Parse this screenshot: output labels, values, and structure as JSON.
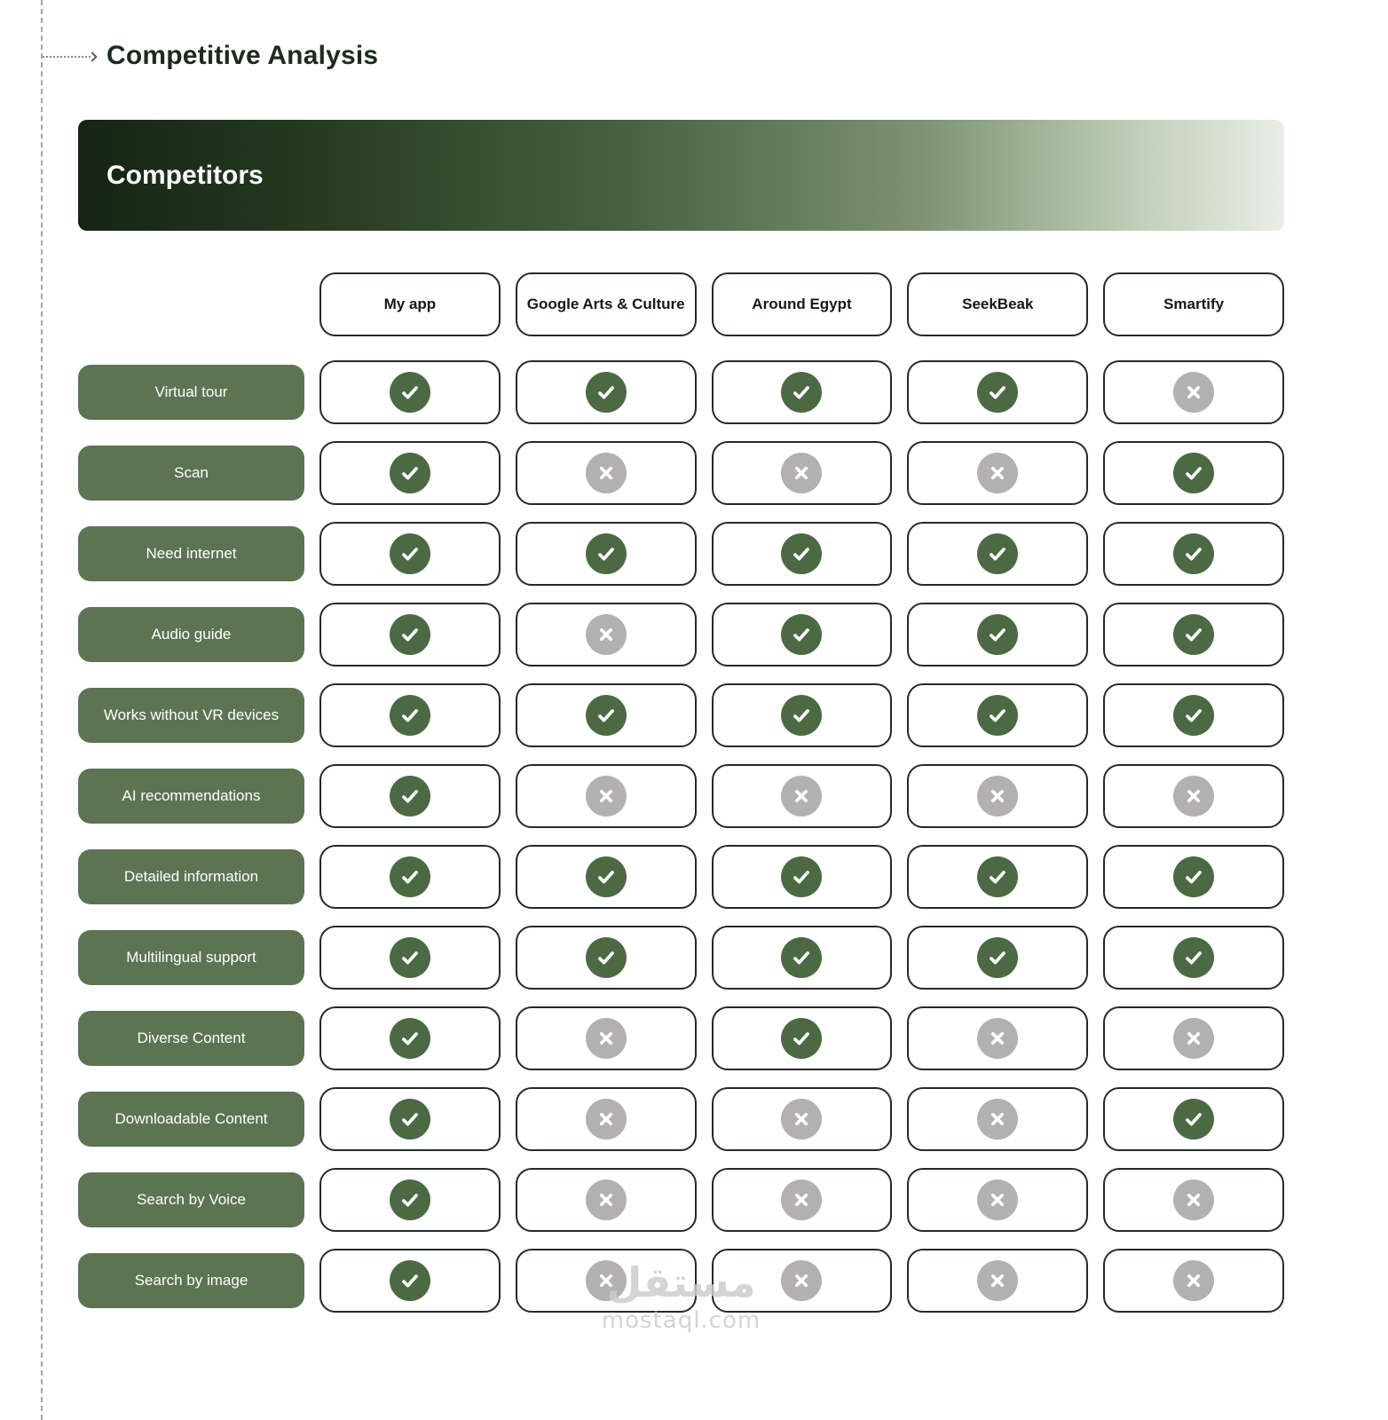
{
  "page": {
    "title": "Competitive Analysis",
    "banner_label": "Competitors"
  },
  "chart_data": {
    "type": "table",
    "title": "Competitive Analysis",
    "section_header": "Competitors",
    "columns": [
      "My app",
      "Google Arts & Culture",
      "Around Egypt",
      "SeekBeak",
      "Smartify"
    ],
    "rows": [
      {
        "feature": "Virtual tour",
        "values": [
          true,
          true,
          true,
          true,
          false
        ]
      },
      {
        "feature": "Scan",
        "values": [
          true,
          false,
          false,
          false,
          true
        ]
      },
      {
        "feature": "Need internet",
        "values": [
          true,
          true,
          true,
          true,
          true
        ]
      },
      {
        "feature": "Audio guide",
        "values": [
          true,
          false,
          true,
          true,
          true
        ]
      },
      {
        "feature": "Works without VR devices",
        "values": [
          true,
          true,
          true,
          true,
          true
        ]
      },
      {
        "feature": "AI recommendations",
        "values": [
          true,
          false,
          false,
          false,
          false
        ]
      },
      {
        "feature": "Detailed information",
        "values": [
          true,
          true,
          true,
          true,
          true
        ]
      },
      {
        "feature": "Multilingual support",
        "values": [
          true,
          true,
          true,
          true,
          true
        ]
      },
      {
        "feature": "Diverse Content",
        "values": [
          true,
          false,
          true,
          false,
          false
        ]
      },
      {
        "feature": "Downloadable Content",
        "values": [
          true,
          false,
          false,
          false,
          true
        ]
      },
      {
        "feature": "Search by Voice",
        "values": [
          true,
          false,
          false,
          false,
          false
        ]
      },
      {
        "feature": "Search by image",
        "values": [
          true,
          false,
          false,
          false,
          false
        ]
      }
    ],
    "cell_marks": {
      "supported": "check-icon",
      "unsupported": "x-icon"
    }
  },
  "colors": {
    "check_circle": "#4b6a43",
    "x_circle": "#b2b0b0",
    "feature_pill": "#5d7453",
    "banner_gradient_start": "#152415",
    "banner_gradient_end": "#e9eee6",
    "cell_border": "#222b22"
  },
  "watermark": {
    "arabic": "مستقل",
    "domain": "mostaql.com"
  }
}
